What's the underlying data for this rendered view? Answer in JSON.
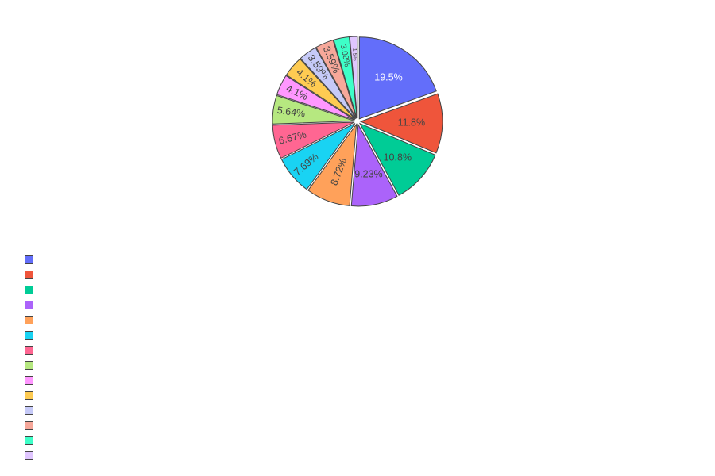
{
  "chart_data": {
    "type": "pie",
    "values": [
      19.5,
      11.8,
      10.8,
      9.23,
      8.72,
      7.69,
      6.67,
      5.64,
      4.1,
      4.1,
      3.59,
      3.59,
      3.08,
      1.5
    ],
    "labels": [
      "19.5%",
      "11.8%",
      "10.8%",
      "9.23%",
      "8.72%",
      "7.69%",
      "6.67%",
      "5.64%",
      "4.1%",
      "4.1%",
      "3.59%",
      "3.59%",
      "3.08%",
      "1.5%"
    ],
    "colors": [
      "#636efa",
      "#ef553b",
      "#00cc96",
      "#ab63fa",
      "#ffa15a",
      "#19d3f3",
      "#ff6692",
      "#b6e880",
      "#ff97ff",
      "#fecb52",
      "#c6caf8",
      "#f7a89a",
      "#3effc8",
      "#e0c6ff"
    ],
    "text_colors": [
      "#ffffff",
      "#444444",
      "#444444",
      "#444444",
      "#444444",
      "#444444",
      "#444444",
      "#444444",
      "#444444",
      "#444444",
      "#444444",
      "#444444",
      "#444444",
      "#444444"
    ],
    "direction": "clockwise",
    "start": "top",
    "pulled": true,
    "legend": {
      "position": "bottom-left",
      "entries": []
    }
  }
}
